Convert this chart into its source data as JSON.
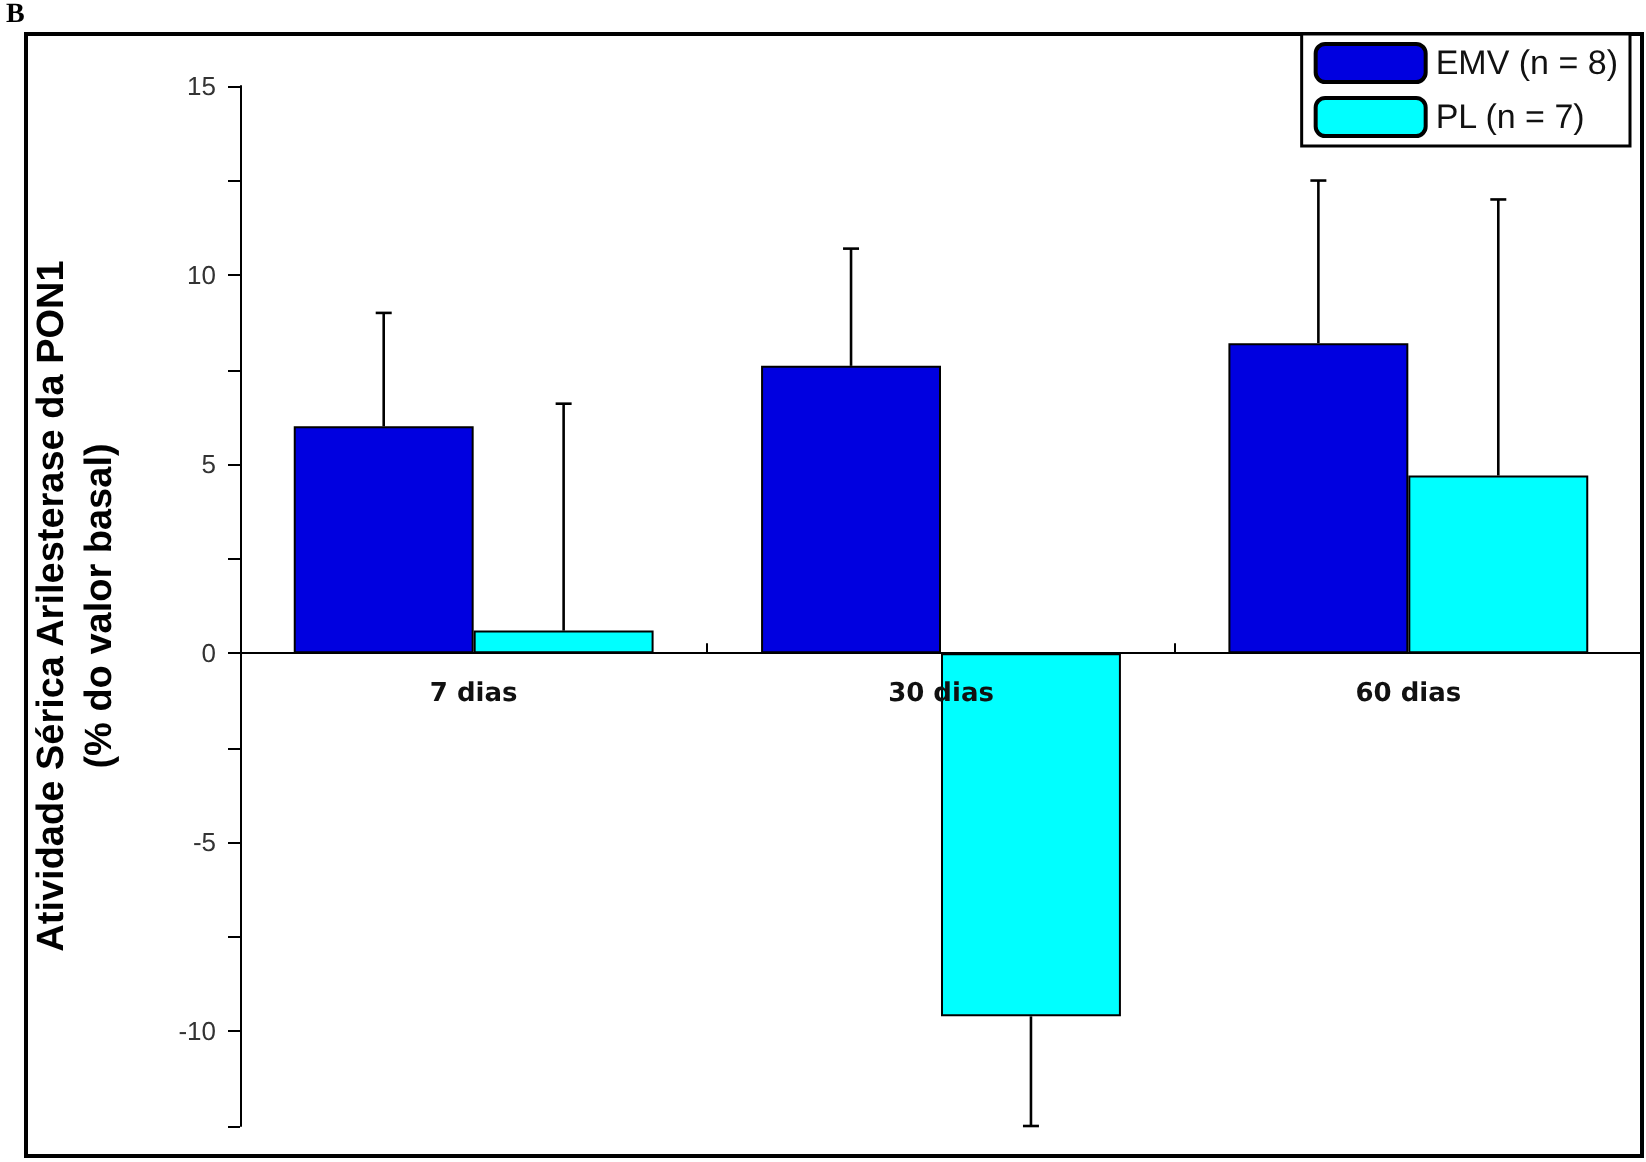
{
  "chart_data": {
    "type": "bar",
    "ylabel": "Atividade Sérica Arilesterase da PON1\n(% do valor basal)",
    "categories": [
      "7 dias",
      "30 dias",
      "60 dias"
    ],
    "series": [
      {
        "name": "EMV (n = 8)",
        "color": "#0000e0",
        "values": [
          6.0,
          7.6,
          8.2
        ],
        "errors": [
          [
            6.0,
            9.0
          ],
          [
            7.6,
            10.7
          ],
          [
            8.2,
            12.5
          ]
        ]
      },
      {
        "name": "PL (n = 7)",
        "color": "#00ffff",
        "values": [
          0.6,
          -9.6,
          4.7
        ],
        "errors": [
          [
            0.6,
            6.6
          ],
          [
            -12.5,
            -9.6
          ],
          [
            4.7,
            12.0
          ]
        ]
      }
    ],
    "ylim": [
      -12.5,
      15
    ],
    "yticks": [
      {
        "value": -12.5,
        "label": null
      },
      -10,
      {
        "value": -7.5,
        "label": null
      },
      -5,
      {
        "value": -2.5,
        "label": null
      },
      0,
      {
        "value": 2.5,
        "label": null
      },
      5,
      {
        "value": 7.5,
        "label": null
      },
      10,
      {
        "value": 12.5,
        "label": null
      },
      15
    ],
    "legend": "top right",
    "grid": false,
    "annotations": [
      "B"
    ]
  }
}
